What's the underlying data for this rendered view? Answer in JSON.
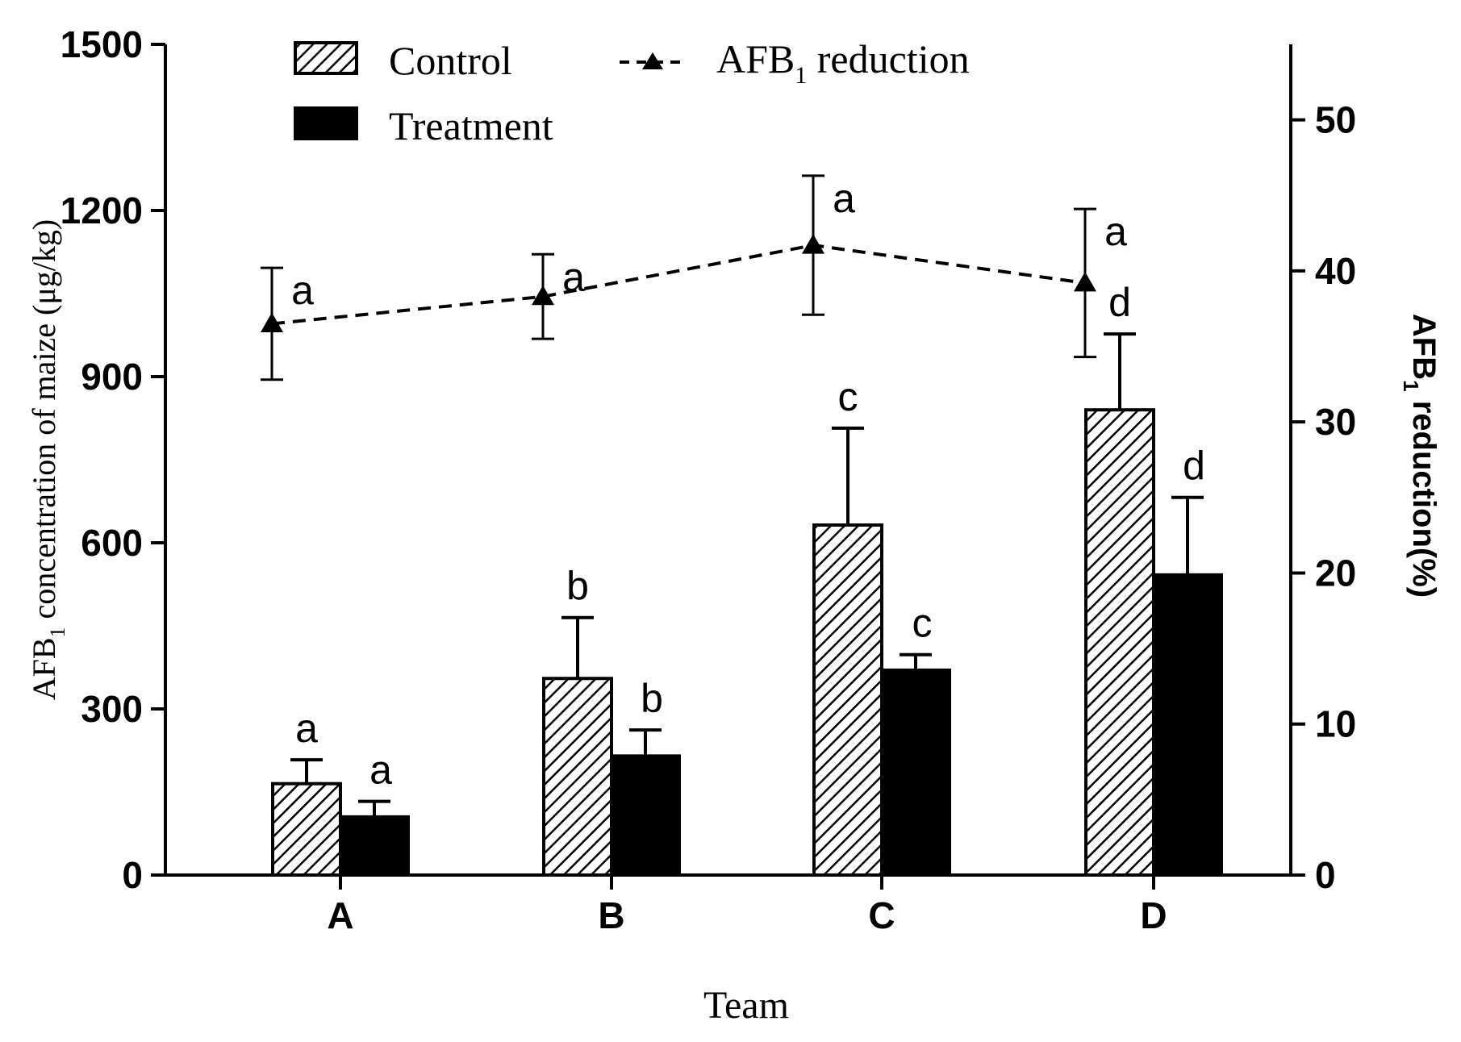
{
  "chart_data": {
    "type": "bar",
    "categories": [
      "A",
      "B",
      "C",
      "D"
    ],
    "xlabel": "Team",
    "ylabel_left": {
      "main": "AFB",
      "sub": "1",
      "rest": " concentration of maize (μg/kg)"
    },
    "ylabel_right": {
      "main": "AFB",
      "sub": "1",
      "rest": " reduction(%)"
    },
    "ylim_left": [
      0,
      1500
    ],
    "yticks_left": [
      0,
      300,
      600,
      900,
      1200,
      1500
    ],
    "ylim_right": [
      0,
      55
    ],
    "yticks_right": [
      0,
      10,
      20,
      30,
      40,
      50
    ],
    "grid": false,
    "legend_position": "top",
    "series": [
      {
        "name": "Control",
        "kind": "bar",
        "axis": "left",
        "pattern": "hatched",
        "values": [
          165,
          355,
          632,
          840
        ],
        "errors": [
          43,
          110,
          175,
          137
        ],
        "significance": [
          "a",
          "b",
          "c",
          "d"
        ]
      },
      {
        "name": "Treatment",
        "kind": "bar",
        "axis": "left",
        "pattern": "solid",
        "values": [
          105,
          215,
          370,
          542
        ],
        "errors": [
          28,
          47,
          28,
          140
        ],
        "significance": [
          "a",
          "b",
          "c",
          "d"
        ]
      },
      {
        "name": {
          "main": "AFB",
          "sub": "1",
          "rest": " reduction"
        },
        "kind": "line",
        "axis": "right",
        "style": "dashed",
        "marker": "triangle",
        "values": [
          36.5,
          38.3,
          41.7,
          39.2
        ],
        "errors": [
          3.7,
          2.8,
          4.6,
          4.9
        ],
        "significance": [
          "a",
          "a",
          "a",
          "a"
        ]
      }
    ],
    "colors": {
      "bar_fill_treatment": "#000000",
      "hatch": "#000000",
      "axis": "#000000",
      "background": "#ffffff"
    }
  }
}
